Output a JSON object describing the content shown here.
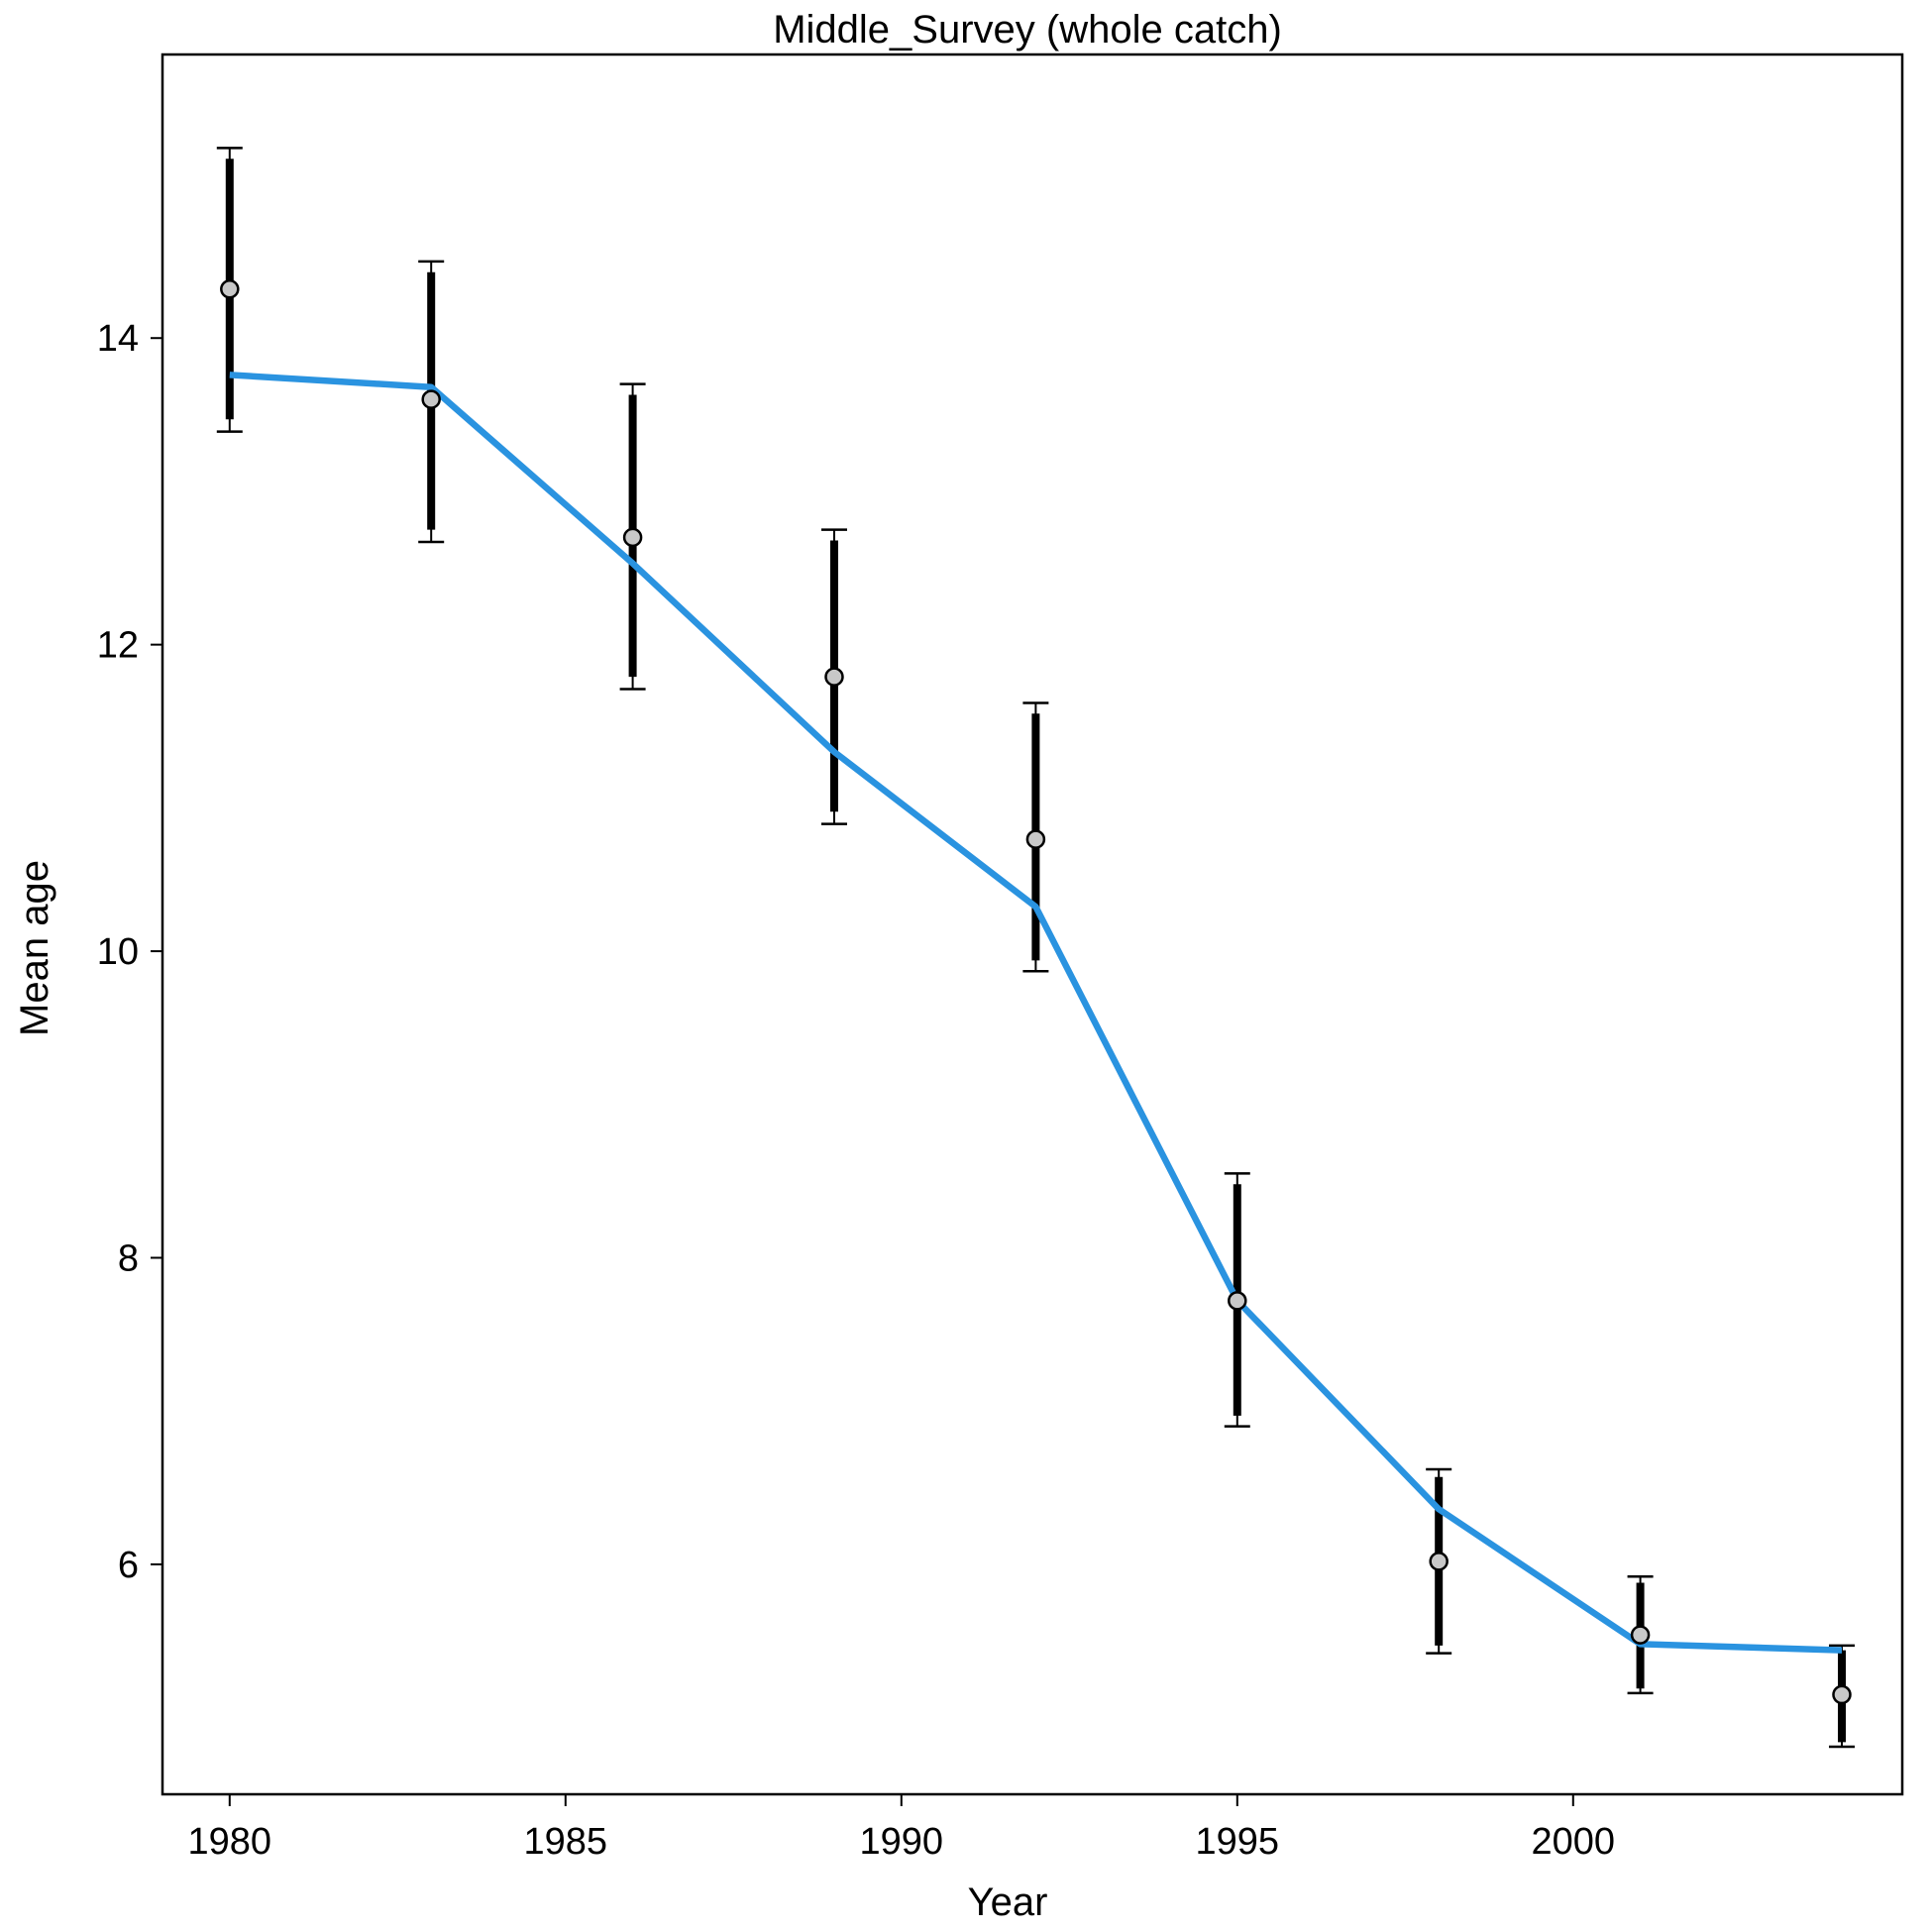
{
  "chart_data": {
    "type": "line",
    "title": "Middle_Survey (whole catch)",
    "xlabel": "Year",
    "ylabel": "Mean age",
    "xlim": [
      1979.0,
      2004.9
    ],
    "ylim": [
      4.5,
      15.85
    ],
    "x_ticks": [
      1980,
      1985,
      1990,
      1995,
      2000
    ],
    "y_ticks": [
      6,
      8,
      10,
      12,
      14
    ],
    "grid": false,
    "colors": {
      "fit_line": "#2a93e0",
      "error_bar": "#000000",
      "point_fill": "#c8c8c8"
    },
    "observed": [
      {
        "x": 1980,
        "y": 14.32,
        "lo_outer": 13.39,
        "hi_outer": 15.24,
        "lo_inner": 13.47,
        "hi_inner": 15.17
      },
      {
        "x": 1983,
        "y": 13.6,
        "lo_outer": 12.67,
        "hi_outer": 14.5,
        "lo_inner": 12.75,
        "hi_inner": 14.43
      },
      {
        "x": 1986,
        "y": 12.7,
        "lo_outer": 11.71,
        "hi_outer": 13.7,
        "lo_inner": 11.79,
        "hi_inner": 13.63
      },
      {
        "x": 1989,
        "y": 11.79,
        "lo_outer": 10.83,
        "hi_outer": 12.75,
        "lo_inner": 10.91,
        "hi_inner": 12.68
      },
      {
        "x": 1992,
        "y": 10.73,
        "lo_outer": 9.87,
        "hi_outer": 11.62,
        "lo_inner": 9.94,
        "hi_inner": 11.55
      },
      {
        "x": 1995,
        "y": 7.72,
        "lo_outer": 6.9,
        "hi_outer": 8.55,
        "lo_inner": 6.97,
        "hi_inner": 8.48
      },
      {
        "x": 1998,
        "y": 6.02,
        "lo_outer": 5.42,
        "hi_outer": 6.62,
        "lo_inner": 5.47,
        "hi_inner": 6.57
      },
      {
        "x": 2001,
        "y": 5.54,
        "lo_outer": 5.16,
        "hi_outer": 5.92,
        "lo_inner": 5.19,
        "hi_inner": 5.88
      },
      {
        "x": 2004,
        "y": 5.15,
        "lo_outer": 4.81,
        "hi_outer": 5.47,
        "lo_inner": 4.84,
        "hi_inner": 5.44
      }
    ],
    "expected": {
      "x": [
        1980,
        1983,
        1986,
        1989,
        1992,
        1995,
        1998,
        2001,
        2004
      ],
      "y": [
        13.76,
        13.68,
        12.53,
        11.3,
        10.29,
        7.72,
        6.36,
        5.48,
        5.44
      ]
    }
  }
}
